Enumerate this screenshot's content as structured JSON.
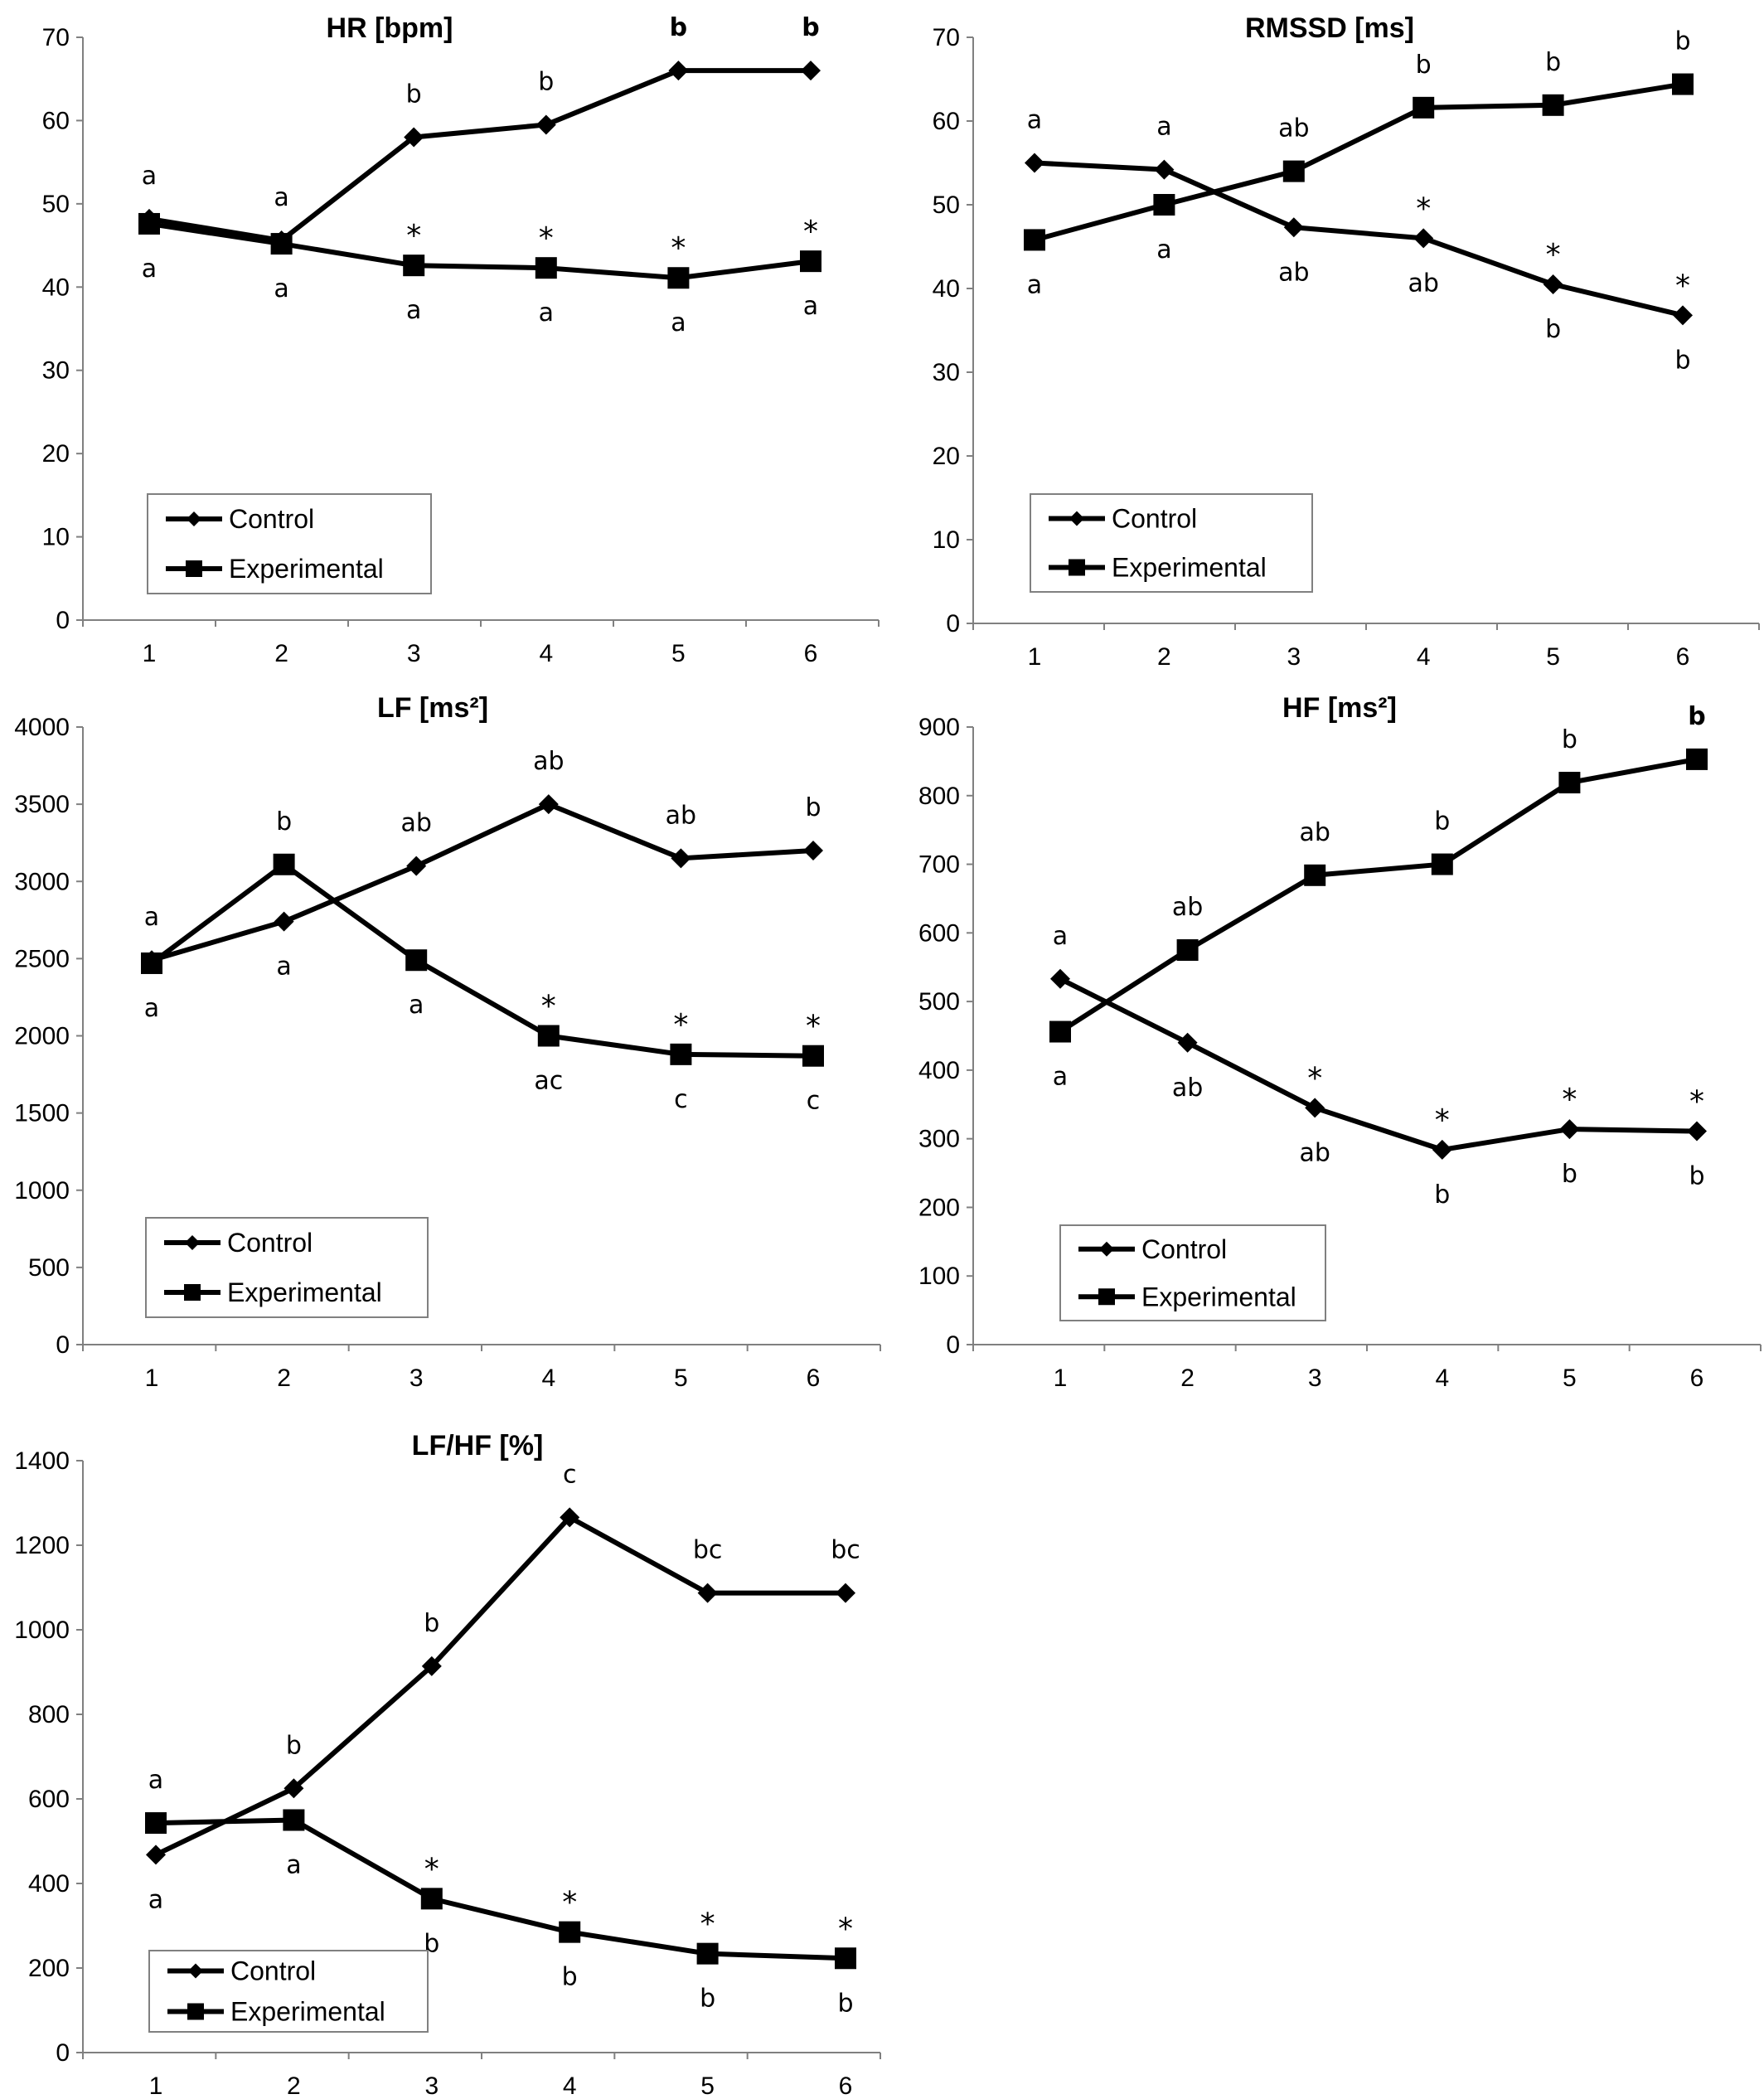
{
  "chart_data": [
    {
      "type": "line",
      "title": "HR [bpm]",
      "x": [
        1,
        2,
        3,
        4,
        5,
        6
      ],
      "ylim": [
        0,
        70
      ],
      "yticks": [
        0,
        10,
        20,
        30,
        40,
        50,
        60,
        70
      ],
      "grid": false,
      "legend": "bottom-left",
      "series": [
        {
          "name": "Control",
          "marker": "diamond",
          "values": [
            48.2,
            45.6,
            58,
            59.5,
            66,
            66
          ],
          "letters": [
            "a",
            "a",
            "b",
            "b",
            "b",
            "b"
          ],
          "letters_bold": [
            false,
            false,
            false,
            false,
            true,
            true
          ]
        },
        {
          "name": "Experimental",
          "marker": "square",
          "values": [
            47.6,
            45.2,
            42.6,
            42.3,
            41.1,
            43.1
          ],
          "letters": [
            "a",
            "a",
            "a",
            "a",
            "a",
            "a"
          ]
        }
      ],
      "asterisks": [
        false,
        false,
        true,
        true,
        true,
        true
      ]
    },
    {
      "type": "line",
      "title": "RMSSD [ms]",
      "x": [
        1,
        2,
        3,
        4,
        5,
        6
      ],
      "ylim": [
        0,
        70
      ],
      "yticks": [
        0,
        10,
        20,
        30,
        40,
        50,
        60,
        70
      ],
      "grid": false,
      "legend": "bottom-left",
      "series": [
        {
          "name": "Control",
          "marker": "diamond",
          "values": [
            55,
            54.2,
            47.3,
            46,
            40.5,
            36.8
          ],
          "letters": [
            "a",
            "a",
            "ab",
            "ab",
            "b",
            "b"
          ]
        },
        {
          "name": "Experimental",
          "marker": "square",
          "values": [
            45.8,
            50,
            54,
            61.6,
            61.9,
            64.4
          ],
          "letters": [
            "a",
            "a",
            "ab",
            "b",
            "b",
            "b"
          ]
        }
      ],
      "asterisks": [
        false,
        false,
        false,
        true,
        true,
        true
      ]
    },
    {
      "type": "line",
      "title": "LF [ms²]",
      "x": [
        1,
        2,
        3,
        4,
        5,
        6
      ],
      "ylim": [
        0,
        4000
      ],
      "yticks": [
        0,
        500,
        1000,
        1500,
        2000,
        2500,
        3000,
        3500,
        4000
      ],
      "grid": false,
      "legend": "bottom-left",
      "series": [
        {
          "name": "Control",
          "marker": "diamond",
          "values": [
            2490,
            2740,
            3100,
            3500,
            3150,
            3200
          ],
          "letters": [
            "a",
            "a",
            "ab",
            "ab",
            "ab",
            "b"
          ]
        },
        {
          "name": "Experimental",
          "marker": "square",
          "values": [
            2470,
            3110,
            2490,
            2000,
            1880,
            1870
          ],
          "letters": [
            "a",
            "b",
            "a",
            "ac",
            "c",
            "c"
          ]
        }
      ],
      "asterisks": [
        false,
        false,
        false,
        true,
        true,
        true
      ]
    },
    {
      "type": "line",
      "title": "HF [ms²]",
      "x": [
        1,
        2,
        3,
        4,
        5,
        6
      ],
      "ylim": [
        0,
        900
      ],
      "yticks": [
        0,
        100,
        200,
        300,
        400,
        500,
        600,
        700,
        800,
        900
      ],
      "grid": false,
      "legend": "bottom-left",
      "series": [
        {
          "name": "Control",
          "marker": "diamond",
          "values": [
            533,
            440,
            345,
            284,
            314,
            311
          ],
          "letters": [
            "a",
            "ab",
            "ab",
            "b",
            "b",
            "b"
          ]
        },
        {
          "name": "Experimental",
          "marker": "square",
          "values": [
            456,
            575,
            684,
            700,
            819,
            853
          ],
          "letters": [
            "a",
            "ab",
            "ab",
            "b",
            "b",
            "b"
          ],
          "letters_bold": [
            false,
            false,
            false,
            false,
            false,
            true
          ]
        }
      ],
      "asterisks": [
        false,
        false,
        true,
        true,
        true,
        true
      ]
    },
    {
      "type": "line",
      "title": "LF/HF [%]",
      "x": [
        1,
        2,
        3,
        4,
        5,
        6
      ],
      "ylim": [
        0,
        1400
      ],
      "yticks": [
        0,
        200,
        400,
        600,
        800,
        1000,
        1200,
        1400
      ],
      "grid": false,
      "legend": "bottom-left",
      "series": [
        {
          "name": "Control",
          "marker": "diamond",
          "values": [
            468,
            625,
            914,
            1266,
            1087,
            1087
          ],
          "letters": [
            "a",
            "b",
            "b",
            "c",
            "bc",
            "bc"
          ]
        },
        {
          "name": "Experimental",
          "marker": "square",
          "values": [
            543,
            550,
            364,
            285,
            234,
            223
          ],
          "letters": [
            "a",
            "a",
            "b",
            "b",
            "b",
            "b"
          ]
        }
      ],
      "asterisks": [
        false,
        false,
        true,
        true,
        true,
        true
      ]
    }
  ]
}
